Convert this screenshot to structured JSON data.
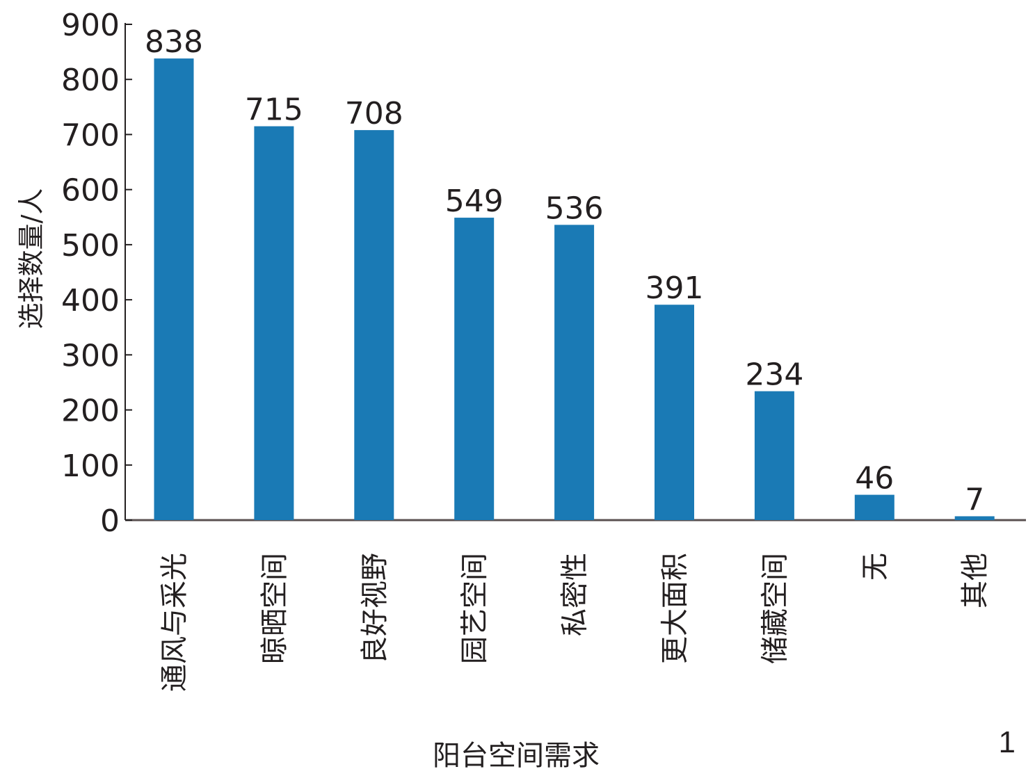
{
  "chart_data": {
    "type": "bar",
    "categories": [
      "通风与采光",
      "晾晒空间",
      "良好视野",
      "园艺空间",
      "私密性",
      "更大面积",
      "储藏空间",
      "无",
      "其他"
    ],
    "values": [
      838,
      715,
      708,
      549,
      536,
      391,
      234,
      46,
      7
    ],
    "title": "",
    "xlabel": "阳台空间需求",
    "ylabel": "选择数量/人",
    "ylim": [
      0,
      900
    ],
    "yticks": [
      0,
      100,
      200,
      300,
      400,
      500,
      600,
      700,
      800,
      900
    ],
    "grid": false,
    "bar_color": "#1a7ab5",
    "figure_label": "1"
  }
}
